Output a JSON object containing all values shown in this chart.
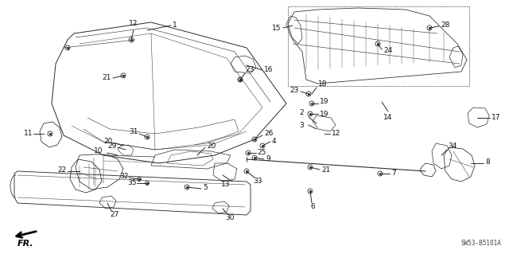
{
  "background_color": "#ffffff",
  "diagram_code": "SW53-B5101A",
  "line_color": "#2a2a2a",
  "label_color": "#111111",
  "label_fontsize": 6.5,
  "lw": 0.7
}
